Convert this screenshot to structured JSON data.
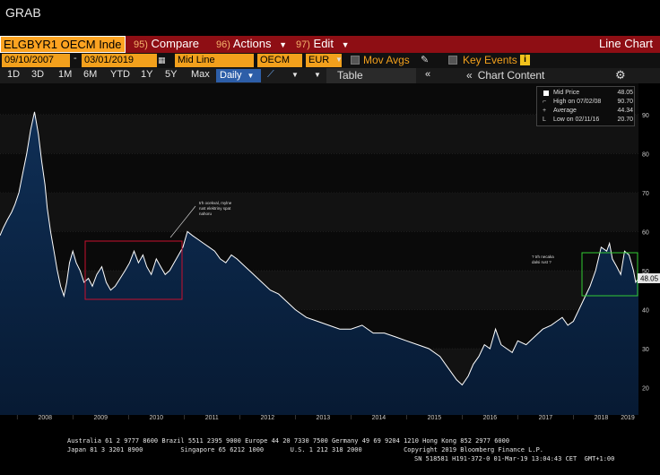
{
  "window": {
    "title": "GRAB"
  },
  "command_bar": {
    "ticker": "ELGBYR1 OECM Inde",
    "items": [
      {
        "num": "95)",
        "label": "Compare"
      },
      {
        "num": "96)",
        "label": "Actions"
      },
      {
        "num": "97)",
        "label": "Edit"
      }
    ],
    "title": "Line Chart"
  },
  "params": {
    "start_date": "09/10/2007",
    "end_date": "03/01/2019",
    "price_type": "Mid Line",
    "source": "OECM",
    "currency": "EUR",
    "mov_avgs_label": "Mov Avgs",
    "key_events_label": "Key Events",
    "info_icon_text": "i"
  },
  "range_bar": {
    "ranges": [
      "1D",
      "3D",
      "1M",
      "6M",
      "YTD",
      "1Y",
      "5Y",
      "Max"
    ],
    "frequency": "Daily",
    "table_label": "Table",
    "chart_content_label": "Chart Content"
  },
  "legend": {
    "items": [
      {
        "label": "Mid Price",
        "value": "48.05"
      },
      {
        "label": "High on 07/02/08",
        "value": "90.70"
      },
      {
        "label": "Average",
        "value": "44.34"
      },
      {
        "label": "Low on 02/11/16",
        "value": "20.70"
      }
    ]
  },
  "annotations": {
    "note1_lines": [
      "trh ocekval, mylne",
      "rust elektriny spat",
      "nahoru"
    ],
    "note2_lines": [
      "? trh necaka",
      "dalsi rust ?"
    ]
  },
  "price_badge": "48.05",
  "chart_data": {
    "type": "area",
    "x_ticks": [
      "2008",
      "2009",
      "2010",
      "2011",
      "2012",
      "2013",
      "2014",
      "2015",
      "2016",
      "2017",
      "2018",
      "2019"
    ],
    "y_ticks": [
      20,
      30,
      40,
      50,
      60,
      70,
      80,
      90
    ],
    "ylim": [
      13,
      98
    ],
    "xlim": [
      2007.69,
      2019.17
    ],
    "series": [
      {
        "x": [
          2007.69,
          2007.75,
          2007.82,
          2007.9,
          2007.96,
          2008.03,
          2008.1,
          2008.17,
          2008.24,
          2008.31,
          2008.38,
          2008.44,
          2008.5,
          2008.54,
          2008.6,
          2008.66,
          2008.72,
          2008.78,
          2008.84,
          2008.89,
          2008.94,
          2009.0,
          2009.06,
          2009.13,
          2009.2,
          2009.28,
          2009.35,
          2009.43,
          2009.52,
          2009.6,
          2009.68,
          2009.76,
          2009.85,
          2009.94,
          2010.02,
          2010.1,
          2010.18,
          2010.26,
          2010.33,
          2010.41,
          2010.5,
          2010.58,
          2010.66,
          2010.74,
          2010.82,
          2010.9,
          2010.98,
          2011.06,
          2011.15,
          2011.25,
          2011.35,
          2011.45,
          2011.55,
          2011.65,
          2011.75,
          2011.85,
          2011.95,
          2012.1,
          2012.25,
          2012.4,
          2012.55,
          2012.7,
          2012.85,
          2013.0,
          2013.2,
          2013.4,
          2013.6,
          2013.8,
          2014.0,
          2014.2,
          2014.4,
          2014.6,
          2014.8,
          2015.0,
          2015.2,
          2015.4,
          2015.6,
          2015.75,
          2015.9,
          2016.0,
          2016.11,
          2016.2,
          2016.3,
          2016.4,
          2016.5,
          2016.6,
          2016.7,
          2016.8,
          2016.9,
          2017.0,
          2017.15,
          2017.3,
          2017.45,
          2017.6,
          2017.7,
          2017.8,
          2017.9,
          2018.0,
          2018.1,
          2018.2,
          2018.3,
          2018.4,
          2018.5,
          2018.6,
          2018.65,
          2018.7,
          2018.78,
          2018.85,
          2018.92,
          2019.0,
          2019.08,
          2019.12,
          2019.17
        ],
        "values": [
          59,
          61,
          63,
          65,
          67,
          70,
          75,
          80,
          86,
          90.7,
          85,
          78,
          72,
          66,
          60,
          55,
          50,
          46,
          43.5,
          47,
          52,
          55,
          52,
          50,
          47,
          48,
          46,
          49,
          51,
          47,
          45,
          46,
          48,
          50,
          52,
          55,
          52,
          54,
          51,
          49,
          53,
          51,
          49,
          50,
          52,
          54,
          56,
          60,
          59,
          58,
          57,
          56,
          55,
          53,
          52,
          54,
          53,
          51,
          49,
          47,
          45,
          44,
          42,
          40,
          38,
          37,
          36,
          35,
          35,
          36,
          34,
          34,
          33,
          32,
          31,
          30,
          28,
          25,
          22,
          20.7,
          23,
          26,
          28,
          31,
          30,
          35,
          31,
          30,
          29,
          32,
          31,
          33,
          35,
          36,
          37,
          38,
          36,
          37,
          40,
          43,
          46,
          50,
          56,
          55,
          57,
          53,
          51,
          49,
          55,
          54,
          50,
          47,
          48.05
        ]
      }
    ]
  },
  "footer": {
    "line1": "Australia 61 2 9777 8600 Brazil 5511 2395 9000 Europe 44 20 7330 7500 Germany 49 69 9204 1210 Hong Kong 852 2977 6000",
    "line2": "Japan 81 3 3201 8900          Singapore 65 6212 1000       U.S. 1 212 318 2000           Copyright 2019 Bloomberg Finance L.P.",
    "line3": "SN 518581 H191-372-0 01-Mar-19 13:04:43 CET  GMT+1:00"
  },
  "colors": {
    "orange": "#f2a01c",
    "red_bar": "#8e0e14",
    "area_top": "#0f2f56",
    "area_bottom": "#06152b",
    "line": "#ffffff",
    "red_box": "#c8102e",
    "green_box": "#33cc33"
  }
}
